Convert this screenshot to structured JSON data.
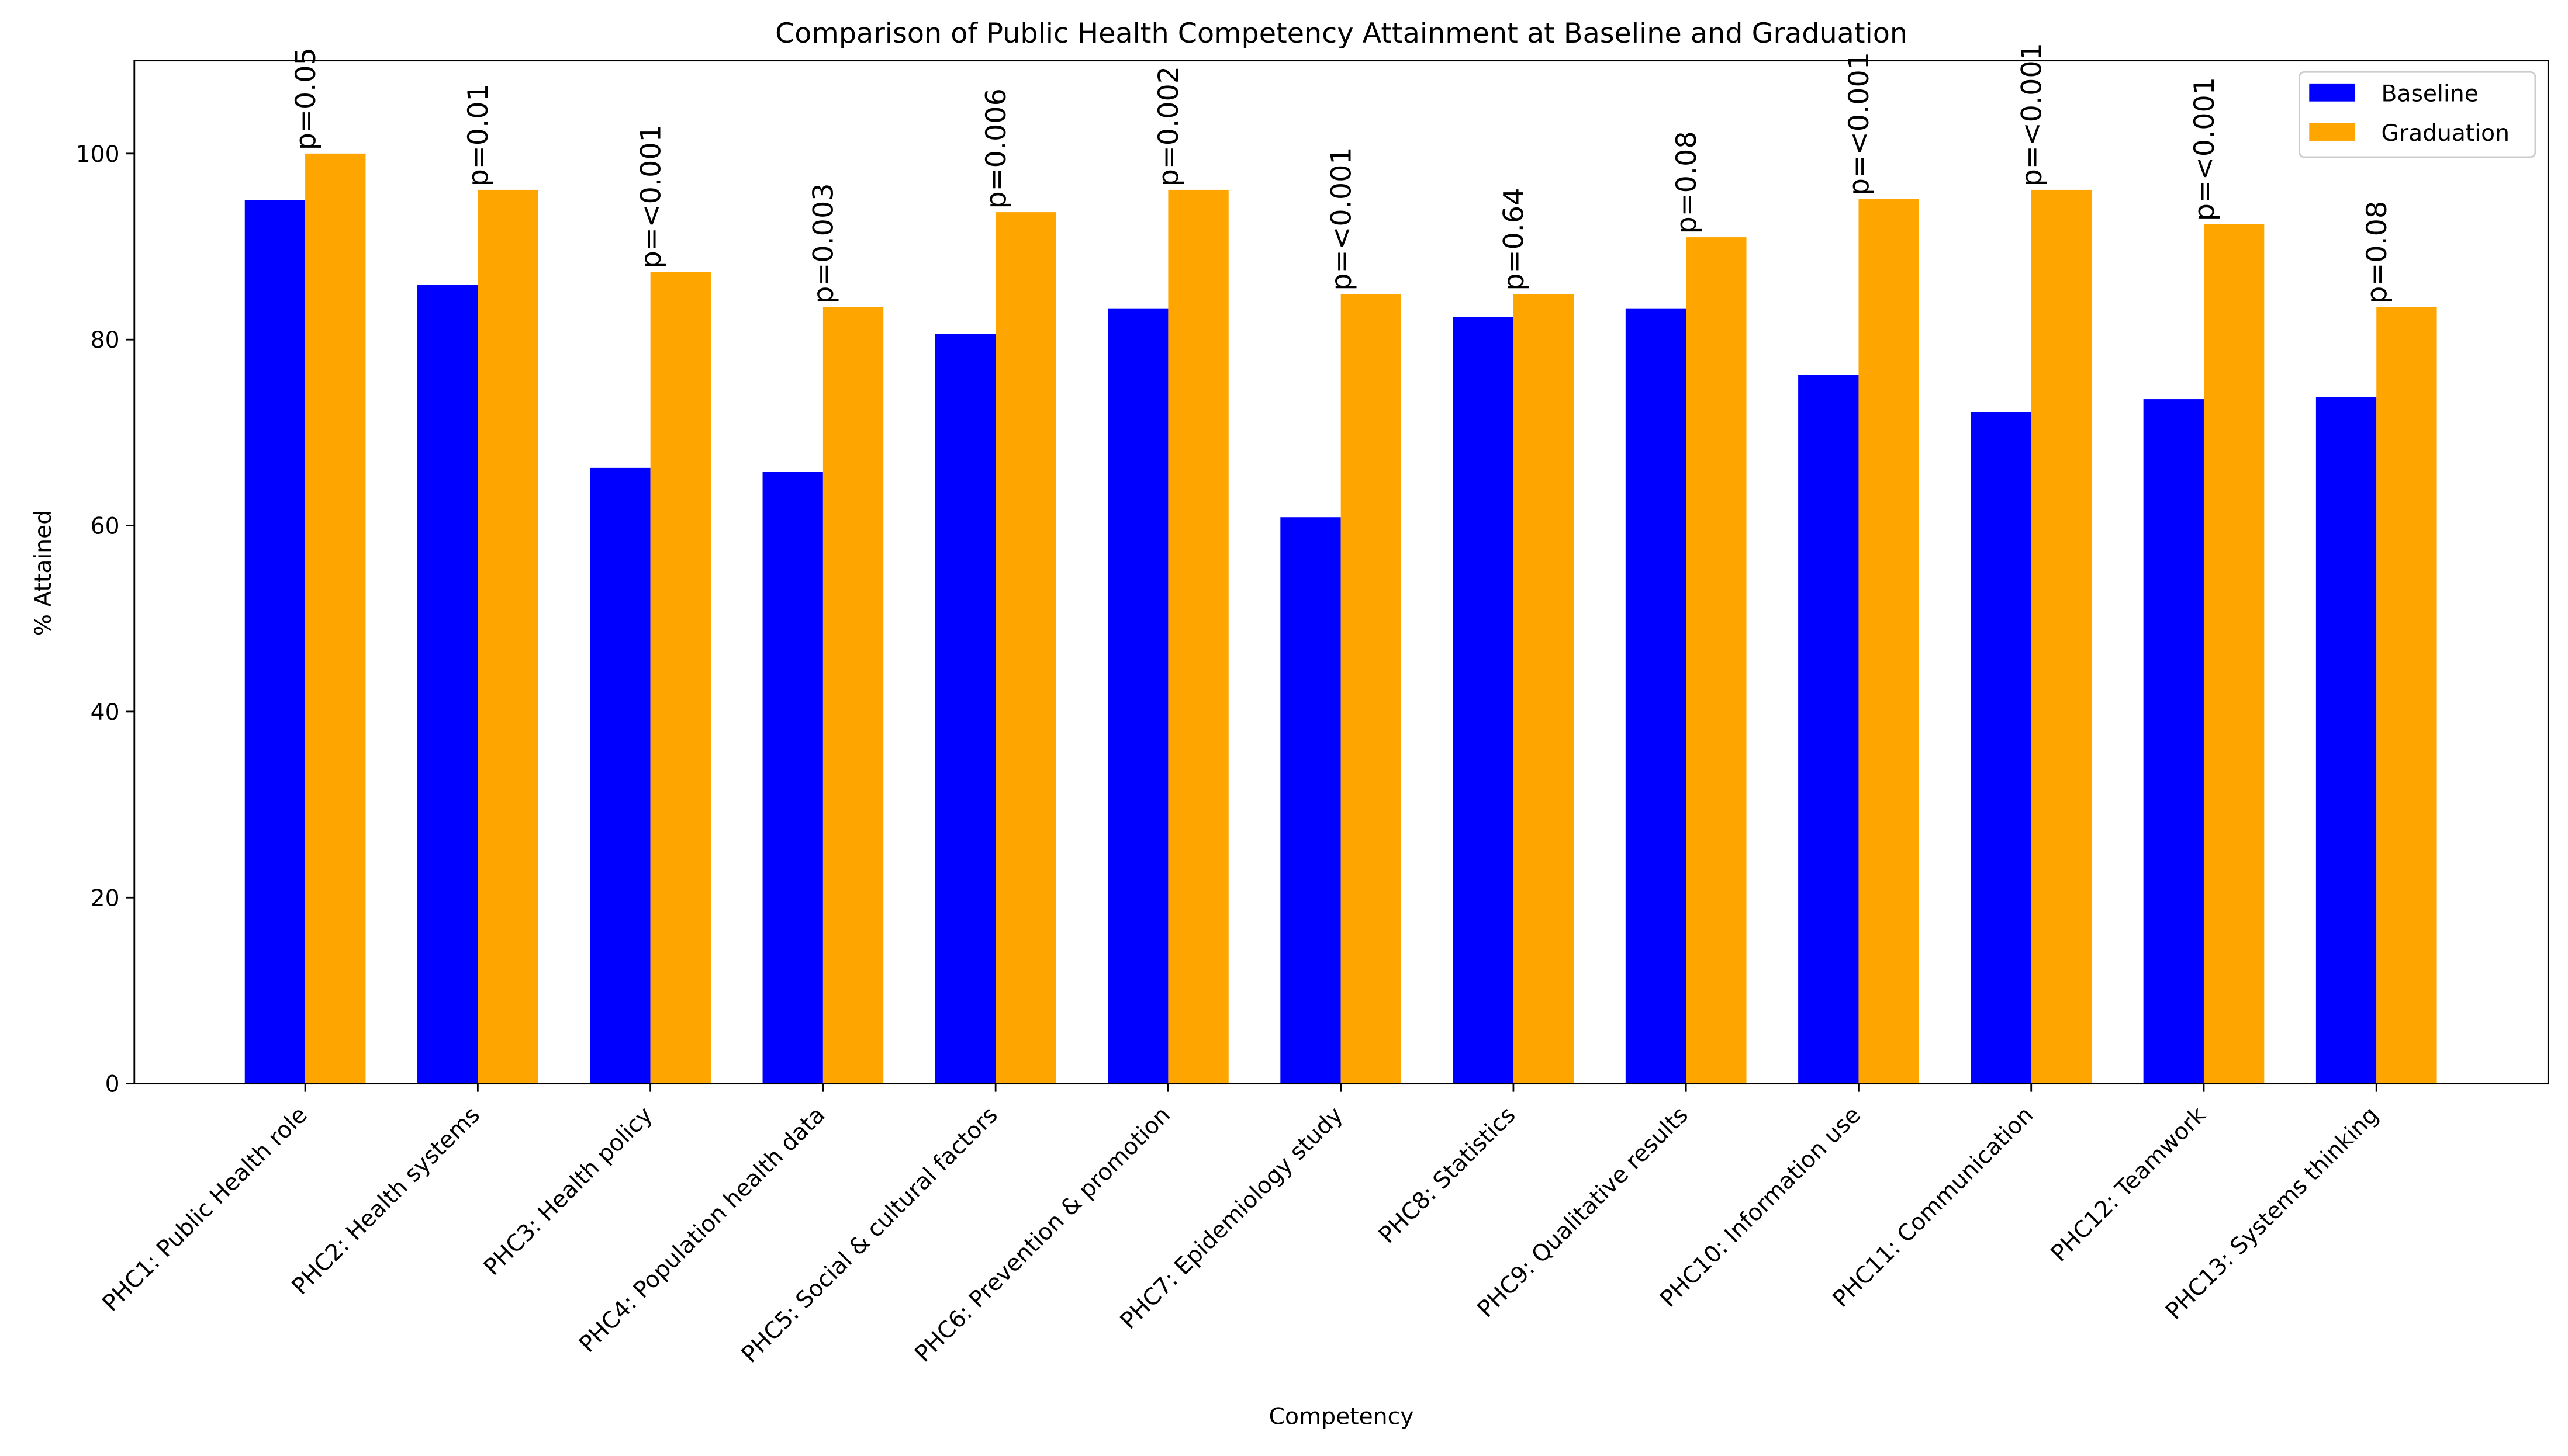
{
  "chart_data": {
    "type": "bar",
    "title": "Comparison of Public Health Competency Attainment at Baseline and Graduation",
    "xlabel": "Competency",
    "ylabel": "% Attained",
    "ylim": [
      0,
      110
    ],
    "yticks": [
      0,
      20,
      40,
      60,
      80,
      100
    ],
    "grid": false,
    "legend_position": "top-right",
    "categories": [
      "PHC1: Public Health role",
      "PHC2: Health systems",
      "PHC3: Health policy",
      "PHC4: Population health data",
      "PHC5: Social & cultural factors",
      "PHC6: Prevention & promotion",
      "PHC7: Epidemiology study",
      "PHC8: Statistics",
      "PHC9: Qualitative results",
      "PHC10: Information use",
      "PHC11: Communication",
      "PHC12: Teamwork",
      "PHC13: Systems thinking"
    ],
    "series": [
      {
        "name": "Baseline",
        "color": "#0000ff",
        "values": [
          95.0,
          85.9,
          66.2,
          65.8,
          80.6,
          83.3,
          60.9,
          82.4,
          83.3,
          76.2,
          72.2,
          73.6,
          73.8
        ]
      },
      {
        "name": "Graduation",
        "color": "#ffa500",
        "values": [
          100.0,
          96.1,
          87.3,
          83.5,
          93.7,
          96.1,
          84.9,
          84.9,
          91.0,
          95.1,
          96.1,
          92.4,
          83.5
        ]
      }
    ],
    "annotations": [
      "p=0.05",
      "p=0.01",
      "p=<0.001",
      "p=0.003",
      "p=0.006",
      "p=0.002",
      "p=<0.001",
      "p=0.64",
      "p=0.08",
      "p=<0.001",
      "p=<0.001",
      "p=<0.001",
      "p=0.08"
    ]
  }
}
